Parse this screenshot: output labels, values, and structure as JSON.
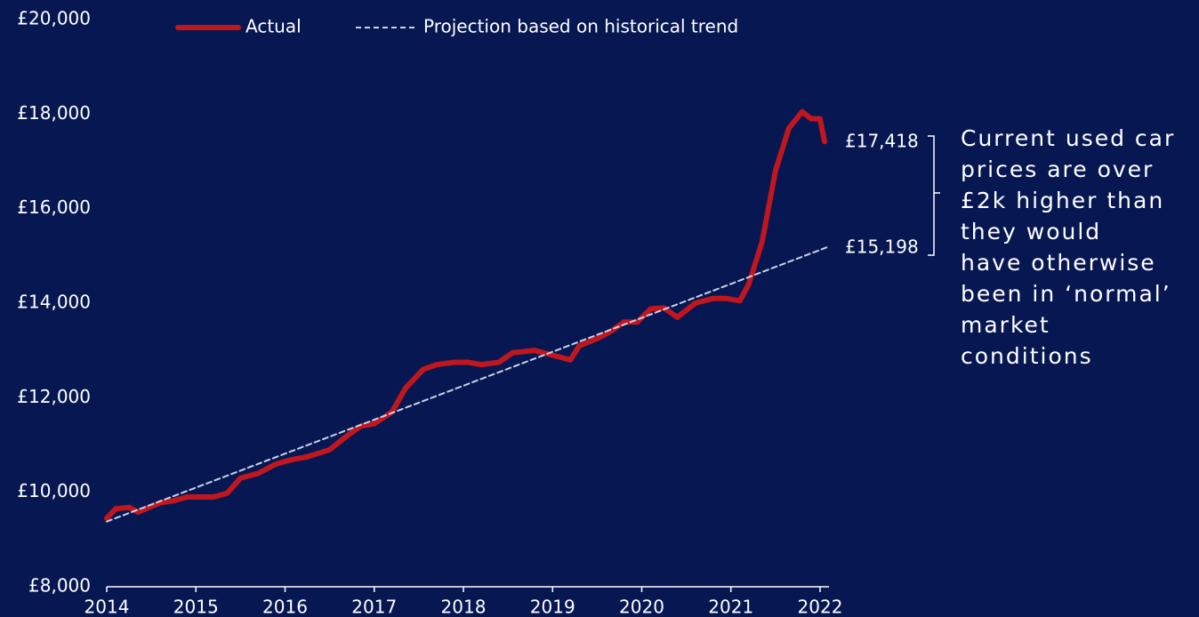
{
  "chart_data": {
    "type": "line",
    "xlim": [
      2014,
      2022.1
    ],
    "xticks": [
      2014,
      2015,
      2016,
      2017,
      2018,
      2019,
      2020,
      2021,
      2022
    ],
    "ylim": [
      8000,
      20000
    ],
    "yticks": [
      {
        "value": 8000,
        "label": "£8,000"
      },
      {
        "value": 10000,
        "label": "£10,000"
      },
      {
        "value": 12000,
        "label": "£12,000"
      },
      {
        "value": 14000,
        "label": "£14,000"
      },
      {
        "value": 16000,
        "label": "£16,000"
      },
      {
        "value": 18000,
        "label": "£18,000"
      },
      {
        "value": 20000,
        "label": "£20,000"
      }
    ],
    "series": [
      {
        "name": "Actual",
        "color": "#c0171e",
        "dashed": false,
        "x": [
          2014.0,
          2014.1,
          2014.25,
          2014.35,
          2014.5,
          2014.6,
          2014.75,
          2014.9,
          2015.2,
          2015.35,
          2015.5,
          2015.7,
          2015.9,
          2016.1,
          2016.25,
          2016.5,
          2016.7,
          2016.85,
          2017.0,
          2017.2,
          2017.35,
          2017.55,
          2017.7,
          2017.9,
          2018.05,
          2018.2,
          2018.4,
          2018.55,
          2018.8,
          2019.0,
          2019.2,
          2019.3,
          2019.5,
          2019.65,
          2019.8,
          2019.95,
          2020.1,
          2020.25,
          2020.4,
          2020.6,
          2020.8,
          2020.95,
          2021.1,
          2021.2,
          2021.35,
          2021.5,
          2021.65,
          2021.8,
          2021.9,
          2022.0,
          2022.05
        ],
        "values": [
          9450,
          9650,
          9680,
          9580,
          9700,
          9780,
          9820,
          9900,
          9900,
          9980,
          10300,
          10400,
          10600,
          10700,
          10750,
          10900,
          11200,
          11400,
          11450,
          11700,
          12200,
          12600,
          12700,
          12750,
          12750,
          12700,
          12750,
          12950,
          13000,
          12900,
          12800,
          13100,
          13250,
          13400,
          13600,
          13600,
          13880,
          13900,
          13700,
          14000,
          14100,
          14100,
          14050,
          14400,
          15300,
          16800,
          17700,
          18050,
          17900,
          17900,
          17418
        ]
      },
      {
        "name": "Projection based on historical trend",
        "color": "#c9d2e8",
        "dashed": true,
        "x": [
          2014.0,
          2022.1
        ],
        "values": [
          9380,
          15198
        ]
      }
    ],
    "end_labels": [
      "£17,418",
      "£15,198"
    ],
    "annotation": [
      "Current used car",
      "prices are over",
      "£2k higher than",
      "they would",
      "have otherwise",
      "been in ‘normal’",
      "market",
      "conditions"
    ]
  }
}
